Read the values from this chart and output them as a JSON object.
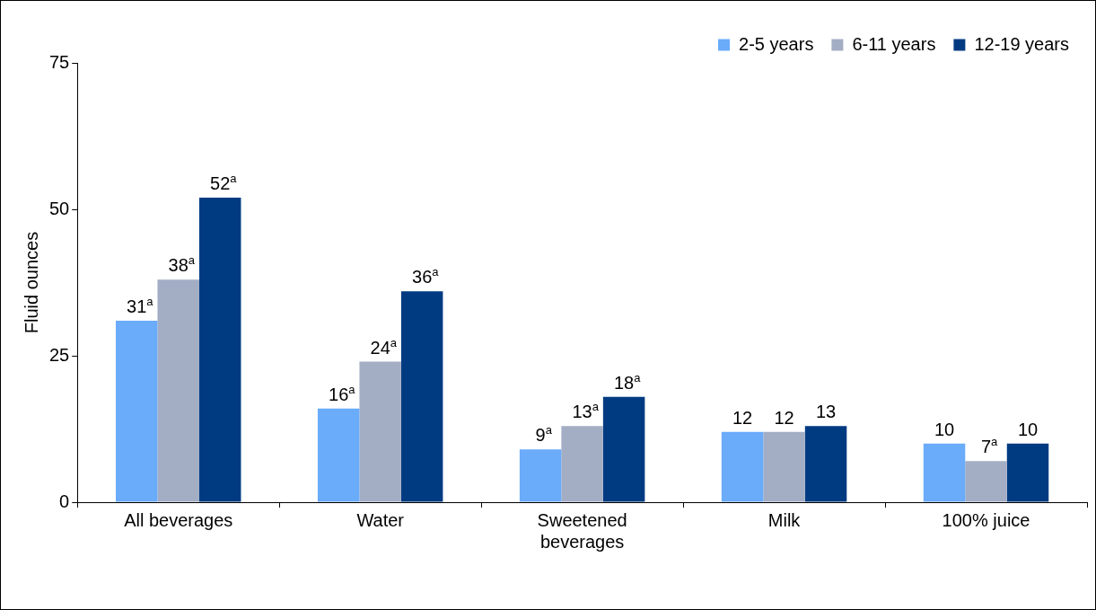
{
  "chart_data": {
    "type": "bar",
    "ylabel": "Fluid ounces",
    "categories": [
      "All beverages",
      "Water",
      "Sweetened beverages",
      "Milk",
      "100% juice"
    ],
    "series": [
      {
        "name": "2-5 years",
        "color": "#6aabfa",
        "values": [
          31,
          16,
          9,
          12,
          10
        ],
        "value_labels": [
          "31$^{a}$",
          "16$^{a}$",
          "9$^{a}$",
          "12",
          "10"
        ]
      },
      {
        "name": "6-11 years",
        "color": "#a3aec5",
        "values": [
          38,
          24,
          13,
          12,
          7
        ],
        "value_labels": [
          "38$^{a}$",
          "24$^{a}$",
          "13$^{a}$",
          "12",
          "7$^{a}$"
        ]
      },
      {
        "name": "12-19 years",
        "color": "#003b82",
        "values": [
          52,
          36,
          18,
          13,
          10
        ],
        "value_labels": [
          "52$^{a}$",
          "36$^{a}$",
          "18$^{a}$",
          "13",
          "10"
        ]
      }
    ],
    "ylim": [
      0,
      75
    ],
    "yticks": [
      0,
      25,
      50,
      75
    ],
    "grid": false,
    "legend": "top right"
  }
}
